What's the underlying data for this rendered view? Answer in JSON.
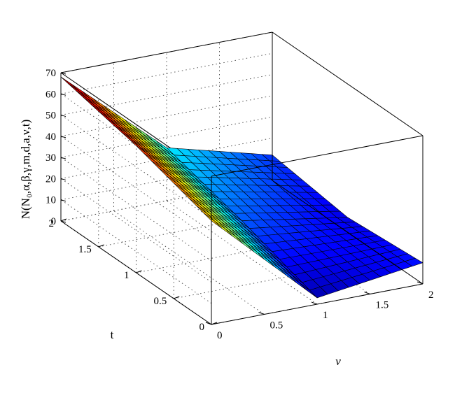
{
  "chart_data": {
    "type": "surface3d",
    "title": "",
    "xlabel": "ν",
    "ylabel": "t",
    "zlabel": "N(N₀,α,β,γ,m,d,a,ν,t)",
    "xlim": [
      0,
      2
    ],
    "ylim": [
      0,
      2
    ],
    "zlim": [
      0,
      70
    ],
    "xticks": [
      0,
      0.5,
      1,
      1.5,
      2
    ],
    "xtick_labels": [
      "0",
      "0.5",
      "1",
      "1.5",
      "2"
    ],
    "yticks": [
      0,
      0.5,
      1,
      1.5,
      2
    ],
    "ytick_labels": [
      "0",
      "0.5",
      "1",
      "1.5",
      "2"
    ],
    "zticks": [
      0,
      10,
      20,
      30,
      40,
      50,
      60,
      70
    ],
    "ztick_labels": [
      "0",
      "10",
      "20",
      "30",
      "40",
      "50",
      "60",
      "70"
    ],
    "grid": true,
    "colormap": "jet",
    "colors": {
      "edge": "#000000",
      "grid": "#555555",
      "axis": "#000000"
    },
    "mesh_n": 20,
    "x": [
      0,
      1,
      2
    ],
    "y": [
      0,
      1,
      2
    ],
    "z": [
      [
        49,
        3,
        10
      ],
      [
        60,
        15,
        7
      ],
      [
        68,
        25,
        12
      ]
    ]
  }
}
